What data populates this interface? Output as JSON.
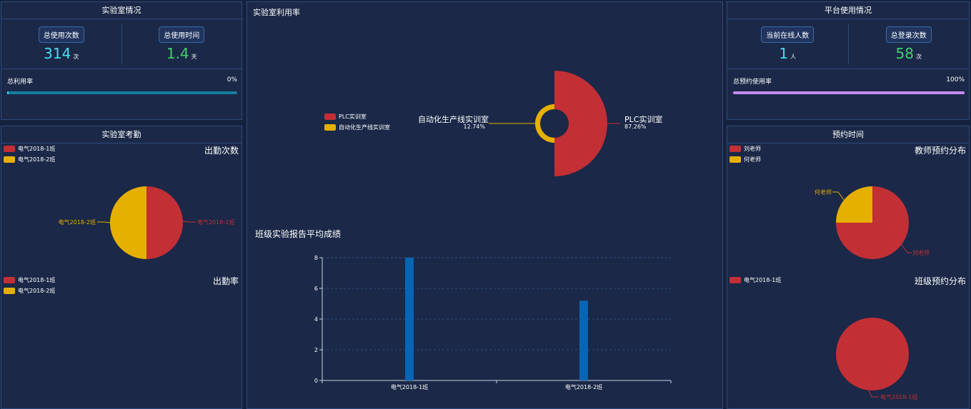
{
  "lab_overview": {
    "title": "实验室情况",
    "total_uses_label": "总使用次数",
    "total_uses_value": "314",
    "total_uses_unit": "次",
    "total_time_label": "总使用时间",
    "total_time_value": "1.4",
    "total_time_unit": "天",
    "utilization_label": "总利用率",
    "utilization_value": "0%",
    "utilization_fraction": 0.005
  },
  "attendance": {
    "title": "实验室考勤",
    "count_title": "出勤次数",
    "rate_title": "出勤率",
    "legend": [
      "电气2018-1班",
      "电气2018-2班"
    ],
    "legend2": [
      "电气2018-1班",
      "电气2018-2班"
    ],
    "label_right": "电气2018-1班",
    "label_left": "电气2018-2班"
  },
  "utilization": {
    "title": "实验室利用率",
    "legend": [
      "PLC实训室",
      "自动化生产线实训室"
    ],
    "label_left_name": "自动化生产线实训室",
    "label_left_pct": "12.74%",
    "label_right_name": "PLC实训室",
    "label_right_pct": "87.26%"
  },
  "report": {
    "title": "班级实验报告平均成绩",
    "tick_labels": [
      "0",
      "2",
      "4",
      "6",
      "8"
    ]
  },
  "platform": {
    "title": "平台使用情况",
    "online_label": "当前在线人数",
    "online_value": "1",
    "online_unit": "人",
    "logins_label": "总登录次数",
    "logins_value": "58",
    "logins_unit": "次",
    "booking_rate_label": "总预约使用率",
    "booking_rate_value": "100%",
    "booking_rate_fraction": 1.0
  },
  "booking": {
    "title": "预约时间",
    "teacher_title": "教师预约分布",
    "teacher_legend": [
      "刘老师",
      "何老师"
    ],
    "teacher_label_left": "何老师",
    "teacher_label_right": "刘老师",
    "class_title": "班级预约分布",
    "class_legend": [
      "电气2018-1班"
    ],
    "class_label": "电气2018-1班"
  },
  "colors": {
    "red": "#c22f35",
    "yellow": "#e6b000",
    "blue": "#0a64b4"
  },
  "chart_data": [
    {
      "type": "pie",
      "title": "出勤次数",
      "labels": [
        "电气2018-1班",
        "电气2018-2班"
      ],
      "values": [
        50,
        50
      ]
    },
    {
      "type": "pie",
      "title": "实验室利用率",
      "labels": [
        "PLC实训室",
        "自动化生产线实训室"
      ],
      "values": [
        87.26,
        12.74
      ]
    },
    {
      "type": "bar",
      "title": "班级实验报告平均成绩",
      "categories": [
        "电气2018-1班",
        "电气2018-2班"
      ],
      "values": [
        8,
        5.2
      ],
      "ylim": [
        0,
        8
      ]
    },
    {
      "type": "pie",
      "title": "教师预约分布",
      "labels": [
        "刘老师",
        "何老师"
      ],
      "values": [
        75,
        25
      ]
    },
    {
      "type": "pie",
      "title": "班级预约分布",
      "labels": [
        "电气2018-1班"
      ],
      "values": [
        100
      ]
    }
  ]
}
